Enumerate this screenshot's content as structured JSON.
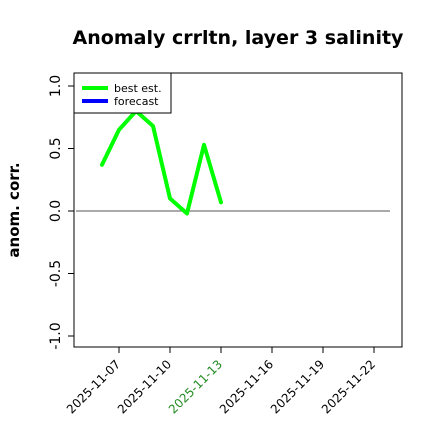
{
  "chart_data": {
    "type": "line",
    "title": "Anomaly crrltn, layer 3 salinity",
    "ylabel": "anom. corr.",
    "xlabel": "",
    "ylim": [
      -1.0,
      1.0
    ],
    "yticks": [
      -1.0,
      -0.5,
      0.0,
      0.5,
      1.0
    ],
    "ytick_labels": [
      "-1.0",
      "-0.5",
      "0.0",
      "0.5",
      "1.0"
    ],
    "xlim": [
      "2025-11-05",
      "2025-11-23"
    ],
    "xticks": [
      "2025-11-07",
      "2025-11-10",
      "2025-11-13",
      "2025-11-16",
      "2025-11-19",
      "2025-11-22"
    ],
    "highlight_tick": "2025-11-13",
    "reference_line": 0.0,
    "grid": false,
    "legend_position": "top-left",
    "series": [
      {
        "name": "best est.",
        "color": "#00ff00",
        "x": [
          "2025-11-06",
          "2025-11-07",
          "2025-11-08",
          "2025-11-09",
          "2025-11-10",
          "2025-11-11",
          "2025-11-12",
          "2025-11-13"
        ],
        "y": [
          0.37,
          0.65,
          0.8,
          0.68,
          0.1,
          -0.02,
          0.53,
          0.07
        ]
      },
      {
        "name": "forecast",
        "color": "#0000ff",
        "x": [],
        "y": []
      }
    ],
    "colors": {
      "axis": "#000000",
      "reference": "#555555",
      "highlight_tick": "#228b22"
    }
  }
}
